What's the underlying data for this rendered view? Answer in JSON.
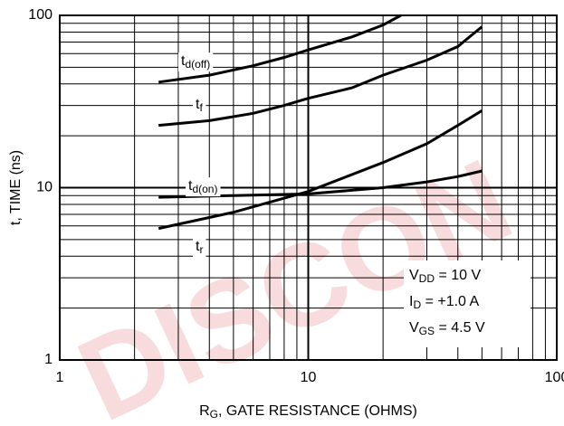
{
  "chart_data": {
    "type": "line",
    "x_label": [
      "R",
      "G",
      ", GATE RESISTANCE (OHMS)"
    ],
    "y_label": "t, TIME (ns)",
    "xlim": [
      1,
      100
    ],
    "ylim": [
      1,
      100
    ],
    "xticks": [
      1,
      10,
      100
    ],
    "yticks": [
      1,
      10,
      100
    ],
    "log_x": true,
    "log_y": true,
    "grid": true,
    "minor_grid": true,
    "series": [
      {
        "name": [
          "t",
          "d(off)"
        ],
        "color": "#000000",
        "x": [
          2.5,
          4,
          6,
          8,
          10,
          15,
          20,
          23.6
        ],
        "values": [
          41,
          45,
          51,
          57,
          63,
          75,
          88,
          100
        ]
      },
      {
        "name": [
          "t",
          "f"
        ],
        "color": "#000000",
        "x": [
          2.5,
          4,
          6,
          8,
          10,
          15,
          20,
          30,
          40,
          50
        ],
        "values": [
          23,
          24.5,
          27,
          30,
          33,
          38,
          45,
          55,
          66,
          86
        ]
      },
      {
        "name": [
          "t",
          "d(on)"
        ],
        "color": "#000000",
        "x": [
          2.5,
          5,
          10,
          20,
          30,
          40,
          50
        ],
        "values": [
          8.8,
          9,
          9.2,
          10,
          10.8,
          11.6,
          12.5
        ]
      },
      {
        "name": [
          "t",
          "r"
        ],
        "color": "#000000",
        "x": [
          2.5,
          5,
          10,
          20,
          30,
          40,
          50
        ],
        "values": [
          5.8,
          7.2,
          9.5,
          14,
          18,
          23,
          28
        ]
      }
    ],
    "annotation_lines": [
      [
        "V",
        "DD",
        " = 10 V"
      ],
      [
        "I",
        "D",
        " = +1.0 A"
      ],
      [
        "V",
        "GS",
        " = 4.5 V"
      ]
    ],
    "watermark": "DISCON"
  }
}
